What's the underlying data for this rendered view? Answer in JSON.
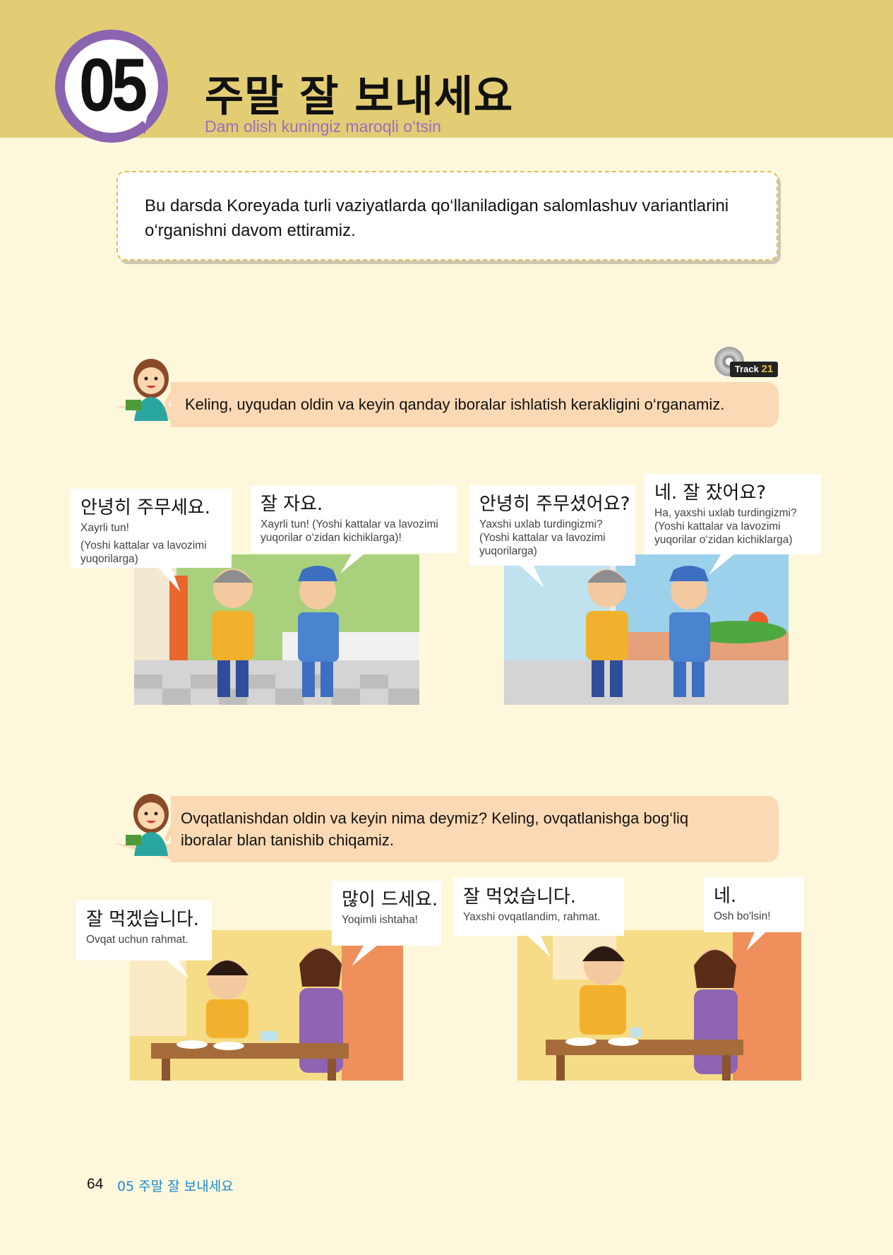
{
  "header": {
    "lesson_number": "05",
    "title": "주말 잘 보내세요",
    "subtitle": "Dam olish kuningiz maroqli o‘tsin"
  },
  "intro": {
    "text": "Bu darsda Koreyada turli vaziyatlarda qo‘llaniladigan salomlashuv variantlarini o‘rganishni davom ettiramiz."
  },
  "track": {
    "prefix": "Track",
    "number": "21"
  },
  "section1": {
    "instruction": "Keling, uyqudan oldin va keyin qanday iboralar ishlatish kerakligini o‘rganamiz.",
    "bubbles": [
      {
        "ko": "안녕히 주무세요.",
        "uz1": "Xayrli tun!",
        "uz2": "(Yoshi kattalar va lavozimi yuqorilarga)"
      },
      {
        "ko": "잘 자요.",
        "uz1": "Xayrli tun! (Yoshi kattalar va lavozimi yuqorilar o‘zidan kichiklarga)!",
        "uz2": ""
      },
      {
        "ko": "안녕히 주무셨어요?",
        "uz1": "Yaxshi uxlab turdingizmi?",
        "uz2": "(Yoshi kattalar va lavozimi yuqorilarga)"
      },
      {
        "ko": "네. 잘 잤어요?",
        "uz1": "Ha, yaxshi uxlab turdingizmi?",
        "uz2": "(Yoshi kattalar va lavozimi yuqorilar o‘zidan kichiklarga)"
      }
    ]
  },
  "section2": {
    "instruction_line1": "Ovqatlanishdan oldin va keyin nima deymiz? Keling, ovqatlanishga bog‘liq",
    "instruction_line2": "iboralar blan tanishib chiqamiz.",
    "bubbles": [
      {
        "ko": "잘 먹겠습니다.",
        "uz1": "Ovqat uchun rahmat."
      },
      {
        "ko": "많이 드세요.",
        "uz1": "Yoqimli ishtaha!"
      },
      {
        "ko": "잘 먹었습니다.",
        "uz1": "Yaxshi ovqatlandim, rahmat."
      },
      {
        "ko": "네.",
        "uz1": "Osh bo'lsin!"
      }
    ]
  },
  "footer": {
    "page": "64",
    "lesson": "05 주말 잘 보내세요"
  }
}
